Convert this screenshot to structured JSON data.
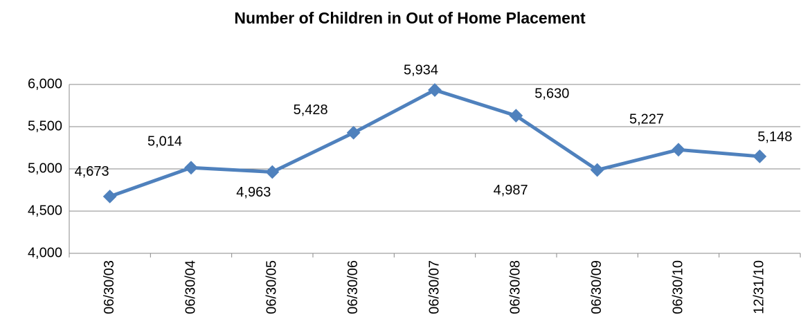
{
  "chart_data": {
    "type": "line",
    "title": "Number of Children in Out of Home Placement",
    "categories": [
      "06/30/03",
      "06/30/04",
      "06/30/05",
      "06/30/06",
      "06/30/07",
      "06/30/08",
      "06/30/09",
      "06/30/10",
      "12/31/10"
    ],
    "series": [
      {
        "name": "Number of Children",
        "color": "#4f81bd",
        "values": [
          4673,
          5014,
          4963,
          5428,
          5934,
          5630,
          4987,
          5227,
          5148
        ],
        "value_labels": [
          "4,673",
          "5,014",
          "4,963",
          "5,428",
          "5,934",
          "5,630",
          "4,987",
          "5,227",
          "5,148"
        ]
      }
    ],
    "ylim": [
      4000,
      6000
    ],
    "yticks": [
      {
        "value": 4000,
        "label": "4,000"
      },
      {
        "value": 4500,
        "label": "4,500"
      },
      {
        "value": 5000,
        "label": "5,000"
      },
      {
        "value": 5500,
        "label": "5,500"
      },
      {
        "value": 6000,
        "label": "6,000"
      }
    ],
    "grid": true
  }
}
